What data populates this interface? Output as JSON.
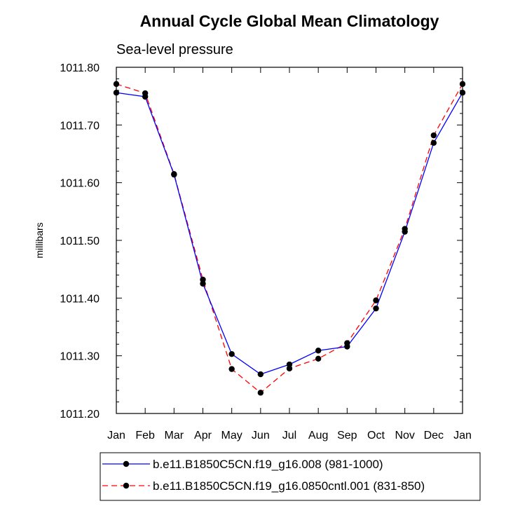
{
  "chart_data": {
    "type": "line",
    "title": "Annual Cycle Global Mean Climatology",
    "subtitle": "Sea-level pressure",
    "xlabel": "",
    "ylabel": "millibars",
    "categories": [
      "Jan",
      "Feb",
      "Mar",
      "Apr",
      "May",
      "Jun",
      "Jul",
      "Aug",
      "Sep",
      "Oct",
      "Nov",
      "Dec",
      "Jan"
    ],
    "ylim": [
      1011.2,
      1011.8
    ],
    "yticks": [
      "1011.20",
      "1011.30",
      "1011.40",
      "1011.50",
      "1011.60",
      "1011.70",
      "1011.80"
    ],
    "series": [
      {
        "name": "b.e11.B1850C5CN.f19_g16.008 (981-1000)",
        "color": "#0000ff",
        "dash": "solid",
        "marker": "circle",
        "values": [
          1011.756,
          1011.749,
          1011.614,
          1011.425,
          1011.303,
          1011.268,
          1011.285,
          1011.309,
          1011.316,
          1011.382,
          1011.515,
          1011.669,
          1011.756
        ]
      },
      {
        "name": "b.e11.B1850C5CN.f19_g16.0850cntl.001 (831-850)",
        "color": "#ff0000",
        "dash": "dashed",
        "marker": "circle",
        "values": [
          1011.771,
          1011.755,
          1011.615,
          1011.432,
          1011.277,
          1011.236,
          1011.278,
          1011.295,
          1011.322,
          1011.396,
          1011.52,
          1011.682,
          1011.771
        ]
      }
    ],
    "legend_position": "bottom"
  }
}
